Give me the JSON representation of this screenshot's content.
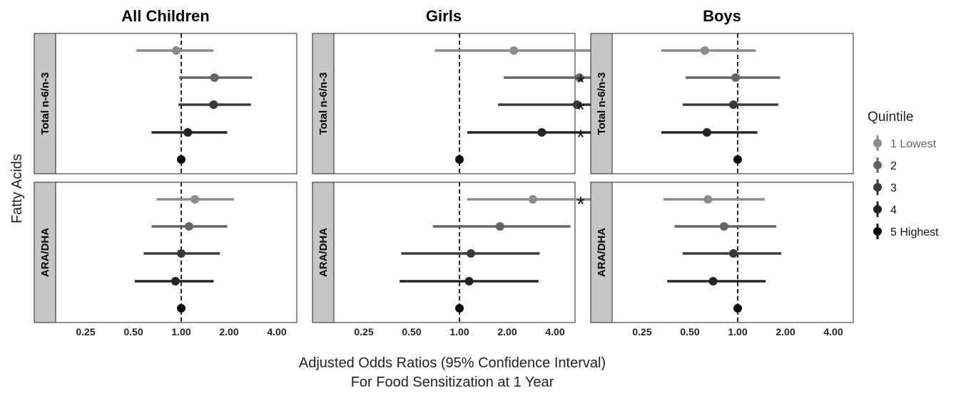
{
  "chart_data": {
    "type": "forest",
    "xscale": "log2",
    "x_ticks": [
      0.25,
      0.5,
      1,
      2,
      4
    ],
    "x_tick_labels": [
      "0.25",
      "0.50",
      "1.00",
      "2.00",
      "4.00"
    ],
    "reference_line": 1,
    "xlabel_line1": "Adjusted Odds Ratios (95% Confidence Interval)",
    "xlabel_line2": "For Food Sensitization at 1 Year",
    "ylabel": "Fatty Acids",
    "legend": {
      "title": "Quintile",
      "placement": "right",
      "entries": [
        {
          "key": "1",
          "label": "1 Lowest",
          "color": "#8c8c8c"
        },
        {
          "key": "2",
          "label": "2",
          "color": "#646464"
        },
        {
          "key": "3",
          "label": "3",
          "color": "#3a3a3a"
        },
        {
          "key": "4",
          "label": "4",
          "color": "#242424"
        },
        {
          "key": "5",
          "label": "5 Highest",
          "color": "#0a0a0a"
        }
      ]
    },
    "columns": [
      "All Children",
      "Girls",
      "Boys"
    ],
    "rows": [
      "Total n-6/n-3",
      "ARA/DHA"
    ],
    "panels": [
      {
        "column": "All Children",
        "row": "Total n-6/n-3",
        "estimates": [
          {
            "quintile": 1,
            "or": 0.93,
            "lo": 0.52,
            "hi": 1.6,
            "sig": false
          },
          {
            "quintile": 2,
            "or": 1.62,
            "lo": 0.97,
            "hi": 2.8,
            "sig": false
          },
          {
            "quintile": 3,
            "or": 1.6,
            "lo": 0.96,
            "hi": 2.75,
            "sig": false
          },
          {
            "quintile": 4,
            "or": 1.1,
            "lo": 0.65,
            "hi": 1.95,
            "sig": false
          },
          {
            "quintile": 5,
            "or": 1.0,
            "lo": null,
            "hi": null,
            "sig": false
          }
        ]
      },
      {
        "column": "All Children",
        "row": "ARA/DHA",
        "estimates": [
          {
            "quintile": 1,
            "or": 1.22,
            "lo": 0.7,
            "hi": 2.15,
            "sig": false
          },
          {
            "quintile": 2,
            "or": 1.12,
            "lo": 0.65,
            "hi": 1.95,
            "sig": false
          },
          {
            "quintile": 3,
            "or": 1.0,
            "lo": 0.58,
            "hi": 1.75,
            "sig": false
          },
          {
            "quintile": 4,
            "or": 0.92,
            "lo": 0.51,
            "hi": 1.6,
            "sig": false
          },
          {
            "quintile": 5,
            "or": 1.0,
            "lo": null,
            "hi": null,
            "sig": false
          }
        ]
      },
      {
        "column": "Girls",
        "row": "Total n-6/n-3",
        "estimates": [
          {
            "quintile": 1,
            "or": 2.2,
            "lo": 0.7,
            "hi": 7.2,
            "sig": false
          },
          {
            "quintile": 2,
            "or": 5.7,
            "lo": 1.9,
            "hi": 9.5,
            "sig": true
          },
          {
            "quintile": 3,
            "or": 5.5,
            "lo": 1.75,
            "hi": 9.5,
            "sig": true
          },
          {
            "quintile": 4,
            "or": 3.3,
            "lo": 1.12,
            "hi": 9.5,
            "sig": true
          },
          {
            "quintile": 5,
            "or": 1.0,
            "lo": null,
            "hi": null,
            "sig": false
          }
        ]
      },
      {
        "column": "Girls",
        "row": "ARA/DHA",
        "estimates": [
          {
            "quintile": 1,
            "or": 2.9,
            "lo": 1.12,
            "hi": 9.5,
            "sig": true
          },
          {
            "quintile": 2,
            "or": 1.8,
            "lo": 0.68,
            "hi": 5.0,
            "sig": false
          },
          {
            "quintile": 3,
            "or": 1.18,
            "lo": 0.43,
            "hi": 3.2,
            "sig": false
          },
          {
            "quintile": 4,
            "or": 1.15,
            "lo": 0.42,
            "hi": 3.15,
            "sig": false
          },
          {
            "quintile": 5,
            "or": 1.0,
            "lo": null,
            "hi": null,
            "sig": false
          }
        ]
      },
      {
        "column": "Boys",
        "row": "Total n-6/n-3",
        "estimates": [
          {
            "quintile": 1,
            "or": 0.62,
            "lo": 0.33,
            "hi": 1.3,
            "sig": false
          },
          {
            "quintile": 2,
            "or": 0.97,
            "lo": 0.47,
            "hi": 1.85,
            "sig": false
          },
          {
            "quintile": 3,
            "or": 0.94,
            "lo": 0.45,
            "hi": 1.8,
            "sig": false
          },
          {
            "quintile": 4,
            "or": 0.64,
            "lo": 0.33,
            "hi": 1.33,
            "sig": false
          },
          {
            "quintile": 5,
            "or": 1.0,
            "lo": null,
            "hi": null,
            "sig": false
          }
        ]
      },
      {
        "column": "Boys",
        "row": "ARA/DHA",
        "estimates": [
          {
            "quintile": 1,
            "or": 0.65,
            "lo": 0.34,
            "hi": 1.48,
            "sig": false
          },
          {
            "quintile": 2,
            "or": 0.82,
            "lo": 0.4,
            "hi": 1.75,
            "sig": false
          },
          {
            "quintile": 3,
            "or": 0.94,
            "lo": 0.45,
            "hi": 1.88,
            "sig": false
          },
          {
            "quintile": 4,
            "or": 0.7,
            "lo": 0.36,
            "hi": 1.5,
            "sig": false
          },
          {
            "quintile": 5,
            "or": 1.0,
            "lo": null,
            "hi": null,
            "sig": false
          }
        ]
      }
    ],
    "significance_marker": "*",
    "strip_color": "#c6c6c6"
  }
}
